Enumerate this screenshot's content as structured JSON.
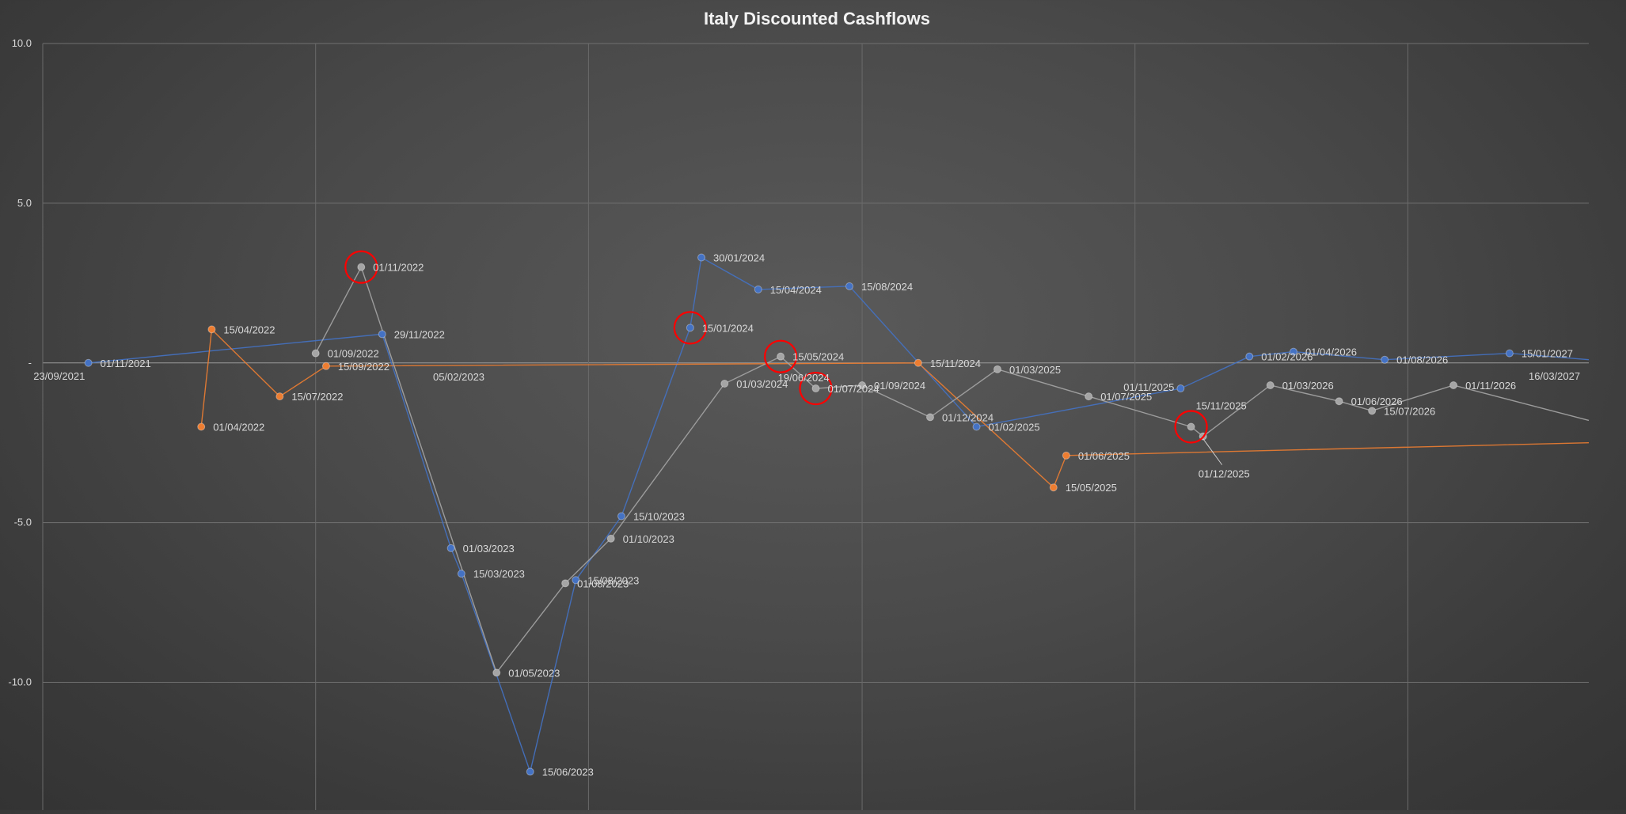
{
  "chart_data": {
    "type": "scatter",
    "title": "Italy Discounted Cashflows",
    "xlabel": "",
    "ylabel": "",
    "ylim": [
      -14,
      10
    ],
    "yticks": [
      {
        "v": 10,
        "label": "10.0"
      },
      {
        "v": 5,
        "label": "5.0"
      },
      {
        "v": 0,
        "label": "-"
      },
      {
        "v": -5,
        "label": "-5.0"
      },
      {
        "v": -10,
        "label": "-10.0"
      }
    ],
    "xlim": [
      "2021-09-01",
      "2027-05-01"
    ],
    "xgrid": [
      "2022-09-01",
      "2023-09-01",
      "2024-09-01",
      "2025-09-01",
      "2026-09-01"
    ],
    "x_axis_labels": [
      {
        "date": "2021-09-23",
        "label": "23/09/2021"
      },
      {
        "date": "2027-03-16",
        "label": "16/03/2027"
      }
    ],
    "grid": true,
    "legend": "none",
    "colors": {
      "blue": "#4472c4",
      "orange": "#ed7d31",
      "gray": "#a5a5a5",
      "highlight": "#ff0000"
    },
    "series": [
      {
        "color": "blue",
        "points": [
          {
            "x": "2021-11-01",
            "y": 0.0,
            "label": "01/11/2021",
            "lpos": "right"
          },
          {
            "x": "2022-11-29",
            "y": 0.9,
            "label": "29/11/2022",
            "lpos": "right"
          },
          {
            "x": "2023-03-01",
            "y": -5.8,
            "label": "01/03/2023",
            "lpos": "right"
          },
          {
            "x": "2023-03-15",
            "y": -6.6,
            "label": "15/03/2023",
            "lpos": "right"
          },
          {
            "x": "2023-06-15",
            "y": -12.8,
            "label": "15/06/2023",
            "lpos": "right"
          },
          {
            "x": "2023-08-15",
            "y": -6.8,
            "label": "15/08/2023",
            "lpos": "right"
          },
          {
            "x": "2023-10-15",
            "y": -4.8,
            "label": "15/10/2023",
            "lpos": "right"
          },
          {
            "x": "2024-01-15",
            "y": 1.1,
            "label": "15/01/2024",
            "lpos": "right"
          },
          {
            "x": "2024-01-30",
            "y": 3.3,
            "label": "30/01/2024",
            "lpos": "right"
          },
          {
            "x": "2024-04-15",
            "y": 2.3,
            "label": "15/04/2024",
            "lpos": "right"
          },
          {
            "x": "2024-08-15",
            "y": 2.4,
            "label": "15/08/2024",
            "lpos": "right"
          },
          {
            "x": "2025-02-01",
            "y": -2.0,
            "label": "01/02/2025",
            "lpos": "right"
          },
          {
            "x": "2025-11-01",
            "y": -0.8,
            "label": "01/11/2025",
            "lpos": "left"
          },
          {
            "x": "2026-02-01",
            "y": 0.2,
            "label": "01/02/2026",
            "lpos": "right"
          },
          {
            "x": "2026-04-01",
            "y": 0.35,
            "label": "01/04/2026",
            "lpos": "right"
          },
          {
            "x": "2026-08-01",
            "y": 0.1,
            "label": "01/08/2026",
            "lpos": "right"
          },
          {
            "x": "2027-01-15",
            "y": 0.3,
            "label": "15/01/2027",
            "lpos": "right"
          },
          {
            "x": "2027-05-01",
            "y": 0.1,
            "label": "",
            "lpos": "right",
            "nomarker": true
          }
        ]
      },
      {
        "color": "orange",
        "points": [
          {
            "x": "2022-04-01",
            "y": -2.0,
            "label": "01/04/2022",
            "lpos": "right"
          },
          {
            "x": "2022-04-15",
            "y": 1.05,
            "label": "15/04/2022",
            "lpos": "right"
          },
          {
            "x": "2022-07-15",
            "y": -1.05,
            "label": "15/07/2022",
            "lpos": "right"
          },
          {
            "x": "2022-09-15",
            "y": -0.1,
            "label": "15/09/2022",
            "lpos": "right"
          },
          {
            "x": "2024-11-15",
            "y": 0.0,
            "label": "15/11/2024",
            "lpos": "right"
          },
          {
            "x": "2025-05-15",
            "y": -3.9,
            "label": "15/05/2025",
            "lpos": "right"
          },
          {
            "x": "2025-06-01",
            "y": -2.9,
            "label": "01/06/2025",
            "lpos": "right"
          },
          {
            "x": "2027-05-01",
            "y": -2.5,
            "label": "",
            "lpos": "right",
            "nomarker": true
          }
        ]
      },
      {
        "color": "gray",
        "points": [
          {
            "x": "2022-09-01",
            "y": 0.3,
            "label": "01/09/2022",
            "lpos": "right"
          },
          {
            "x": "2022-11-01",
            "y": 3.0,
            "label": "01/11/2022",
            "lpos": "right"
          },
          {
            "x": "2023-02-05",
            "y": null,
            "label": "05/02/2023",
            "lpos": "right",
            "textonly": true
          },
          {
            "x": "2023-05-01",
            "y": -9.7,
            "label": "01/05/2023",
            "lpos": "right"
          },
          {
            "x": "2023-08-01",
            "y": -6.9,
            "label": "01/08/2023",
            "lpos": "right"
          },
          {
            "x": "2023-10-01",
            "y": -5.5,
            "label": "01/10/2023",
            "lpos": "right"
          },
          {
            "x": "2024-03-01",
            "y": -0.65,
            "label": "01/03/2024",
            "lpos": "right"
          },
          {
            "x": "2024-05-15",
            "y": 0.2,
            "label": "15/05/2024",
            "lpos": "right"
          },
          {
            "x": "2024-06-19",
            "y": null,
            "label": "19/06/2024",
            "lpos": "below",
            "textonly": true
          },
          {
            "x": "2024-07-01",
            "y": -0.8,
            "label": "01/07/2024",
            "lpos": "right"
          },
          {
            "x": "2024-09-01",
            "y": -0.7,
            "label": "01/09/2024",
            "lpos": "right"
          },
          {
            "x": "2024-12-01",
            "y": -1.7,
            "label": "01/12/2024",
            "lpos": "right"
          },
          {
            "x": "2025-03-01",
            "y": -0.2,
            "label": "01/03/2025",
            "lpos": "right"
          },
          {
            "x": "2025-07-01",
            "y": -1.05,
            "label": "01/07/2025",
            "lpos": "right"
          },
          {
            "x": "2025-11-15",
            "y": -2.0,
            "label": "15/11/2025",
            "lpos": "above"
          },
          {
            "x": "2025-12-01",
            "y": -2.3,
            "label": "01/12/2025",
            "lpos": "belowfar"
          },
          {
            "x": "2026-03-01",
            "y": -0.7,
            "label": "01/03/2026",
            "lpos": "right"
          },
          {
            "x": "2026-06-01",
            "y": -1.2,
            "label": "01/06/2026",
            "lpos": "right"
          },
          {
            "x": "2026-07-15",
            "y": -1.5,
            "label": "15/07/2026",
            "lpos": "right"
          },
          {
            "x": "2026-11-01",
            "y": -0.7,
            "label": "01/11/2026",
            "lpos": "right"
          },
          {
            "x": "2027-05-01",
            "y": -1.8,
            "label": "",
            "lpos": "right",
            "nomarker": true
          }
        ]
      }
    ],
    "highlights": [
      {
        "x": "2022-11-01",
        "y": 3.0
      },
      {
        "x": "2024-01-15",
        "y": 1.1
      },
      {
        "x": "2024-05-15",
        "y": 0.2
      },
      {
        "x": "2024-07-01",
        "y": -0.8
      },
      {
        "x": "2025-11-15",
        "y": -2.0
      }
    ]
  }
}
